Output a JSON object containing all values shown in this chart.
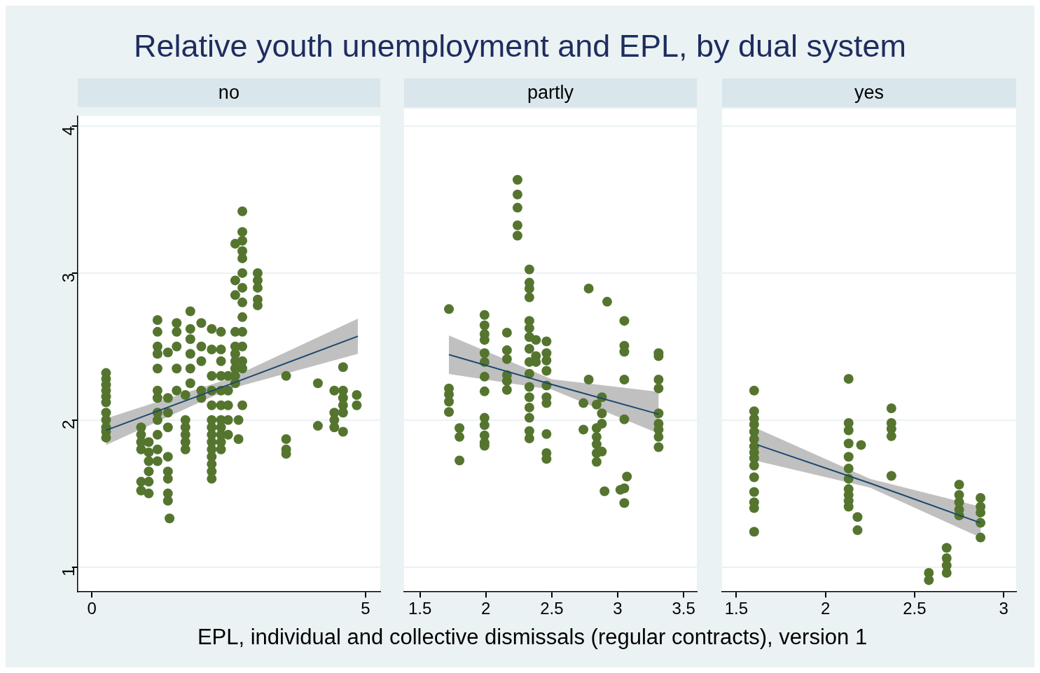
{
  "chart_data": [
    {
      "type": "scatter",
      "title": "Relative youth unemployment and EPL, by dual system",
      "subtitle": "no",
      "xlim": [
        -0.26,
        5.27
      ],
      "xticks": [
        0,
        5
      ],
      "ylim": [
        0.83,
        4.07
      ],
      "yticks": [
        1,
        2,
        3,
        4
      ],
      "grid": "y",
      "series": [
        {
          "type": "scatter",
          "marker": "circle",
          "color": "#55752f",
          "x": [
            0.26,
            0.26,
            0.26,
            0.26,
            0.26,
            0.26,
            0.26,
            0.26,
            0.26,
            0.26,
            0.26,
            0.9,
            0.9,
            0.9,
            0.9,
            0.9,
            0.9,
            1.2,
            1.2,
            1.2,
            1.2,
            1.2,
            1.2,
            1.2,
            1.2,
            1.2,
            1.2,
            1.2,
            1.2,
            1.04,
            1.04,
            1.04,
            1.04,
            1.04,
            1.04,
            1.39,
            1.39,
            1.39,
            1.39,
            1.39,
            1.39,
            1.39,
            1.39,
            1.39,
            1.42,
            1.55,
            1.55,
            1.55,
            1.55,
            1.55,
            1.71,
            1.71,
            1.71,
            1.71,
            1.71,
            1.71,
            1.8,
            1.8,
            1.8,
            1.8,
            1.8,
            1.8,
            2.0,
            2.0,
            2.0,
            2.0,
            2.0,
            2.19,
            2.19,
            2.19,
            2.19,
            2.19,
            2.19,
            2.19,
            2.19,
            2.19,
            2.19,
            2.19,
            2.19,
            2.19,
            2.19,
            2.36,
            2.36,
            2.36,
            2.36,
            2.36,
            2.36,
            2.36,
            2.36,
            2.36,
            2.36,
            2.36,
            2.49,
            2.49,
            2.49,
            2.49,
            2.49,
            2.62,
            2.62,
            2.62,
            2.62,
            2.62,
            2.62,
            2.62,
            2.62,
            2.62,
            2.62,
            2.75,
            2.75,
            2.75,
            2.75,
            2.75,
            2.75,
            2.75,
            2.75,
            2.75,
            2.75,
            2.75,
            2.75,
            2.75,
            2.75,
            2.68,
            2.68,
            3.03,
            3.03,
            3.03,
            3.03,
            3.03,
            3.55,
            3.55,
            3.55,
            3.55,
            4.13,
            4.13,
            4.43,
            4.43,
            4.43,
            4.43,
            4.59,
            4.59,
            4.59,
            4.59,
            4.59,
            4.59,
            4.84,
            4.84
          ],
          "values": [
            2.32,
            2.28,
            2.24,
            2.2,
            2.16,
            2.12,
            2.05,
            2.0,
            1.95,
            1.92,
            1.88,
            1.58,
            1.52,
            1.8,
            1.85,
            1.9,
            1.95,
            2.68,
            2.6,
            2.5,
            2.45,
            2.35,
            2.2,
            2.15,
            2.05,
            2.0,
            1.9,
            1.8,
            1.72,
            1.85,
            1.78,
            1.72,
            1.65,
            1.58,
            1.5,
            2.46,
            2.15,
            2.05,
            1.95,
            1.75,
            1.65,
            1.6,
            1.5,
            1.45,
            1.33,
            2.66,
            2.6,
            2.5,
            2.35,
            2.2,
            2.0,
            1.95,
            1.9,
            1.85,
            1.8,
            2.17,
            2.74,
            2.62,
            2.55,
            2.45,
            2.35,
            2.25,
            2.66,
            2.5,
            2.4,
            2.2,
            2.15,
            2.62,
            2.48,
            2.3,
            2.2,
            2.1,
            2.0,
            1.95,
            1.9,
            1.85,
            1.8,
            1.75,
            1.7,
            1.65,
            1.6,
            2.6,
            2.48,
            2.4,
            2.3,
            2.2,
            2.1,
            2.0,
            1.95,
            1.9,
            1.85,
            1.8,
            2.3,
            2.2,
            2.1,
            2.0,
            1.9,
            3.2,
            2.95,
            2.85,
            2.6,
            2.5,
            2.45,
            2.4,
            2.35,
            2.3,
            2.25,
            3.42,
            3.28,
            3.22,
            3.15,
            3.1,
            3.0,
            2.9,
            2.8,
            2.7,
            2.6,
            2.5,
            2.4,
            2.35,
            2.1,
            1.87,
            2.0,
            3.0,
            2.95,
            2.9,
            2.82,
            2.78,
            2.3,
            1.87,
            1.8,
            1.77,
            2.25,
            1.96,
            2.2,
            2.05,
            1.95,
            2.0,
            2.36,
            2.2,
            2.15,
            2.1,
            2.05,
            1.92,
            2.17,
            2.1
          ]
        },
        {
          "type": "line",
          "marker": "none",
          "color": "#1a476f",
          "x": [
            0.26,
            2.5,
            4.86
          ],
          "values": [
            1.93,
            2.24,
            2.57
          ],
          "lower": [
            1.83,
            2.21,
            2.45
          ],
          "upper": [
            2.01,
            2.28,
            2.69
          ]
        }
      ]
    },
    {
      "type": "scatter",
      "subtitle": "partly",
      "xlabel": "EPL, individual and collective dismissals (regular contracts), version 1",
      "xlim": [
        1.38,
        3.6
      ],
      "xticks": [
        1.5,
        2,
        2.5,
        3,
        3.5
      ],
      "ylim": [
        0.83,
        4.12
      ],
      "yticks": [
        1,
        2,
        3,
        4
      ],
      "tick_labels": "x",
      "grid": "y",
      "series": [
        {
          "type": "scatter",
          "marker": "circle",
          "color": "#55752f",
          "x": [
            1.72,
            1.72,
            1.72,
            1.72,
            1.72,
            1.8,
            1.8,
            1.8,
            1.99,
            1.99,
            1.99,
            1.99,
            1.99,
            1.99,
            1.99,
            1.99,
            1.99,
            1.99,
            1.99,
            1.99,
            1.99,
            2.16,
            2.16,
            2.16,
            2.16,
            2.16,
            2.16,
            2.24,
            2.24,
            2.24,
            2.24,
            2.24,
            2.33,
            2.33,
            2.33,
            2.33,
            2.33,
            2.33,
            2.33,
            2.33,
            2.33,
            2.33,
            2.33,
            2.33,
            2.33,
            2.33,
            2.33,
            2.33,
            2.38,
            2.38,
            2.38,
            2.46,
            2.46,
            2.46,
            2.46,
            2.46,
            2.46,
            2.46,
            2.46,
            2.46,
            2.46,
            2.78,
            2.78,
            2.74,
            2.74,
            2.84,
            2.84,
            2.84,
            2.84,
            2.84,
            2.84,
            2.88,
            2.88,
            2.88,
            2.88,
            2.92,
            2.9,
            3.05,
            3.05,
            3.05,
            3.05,
            3.05,
            3.05,
            3.05,
            3.07,
            3.02,
            3.31,
            3.31,
            3.31,
            3.31,
            3.31,
            3.31,
            3.31,
            3.31,
            3.31
          ],
          "values": [
            2.755,
            2.215,
            2.175,
            2.125,
            2.055,
            1.945,
            1.885,
            1.725,
            2.715,
            2.645,
            2.585,
            2.545,
            2.455,
            2.395,
            2.295,
            2.195,
            2.015,
            1.965,
            1.895,
            1.845,
            1.825,
            2.595,
            2.475,
            2.415,
            2.305,
            2.265,
            2.205,
            3.635,
            3.535,
            3.445,
            3.325,
            3.255,
            3.025,
            2.935,
            2.895,
            2.835,
            2.675,
            2.625,
            2.565,
            2.485,
            2.395,
            2.315,
            2.225,
            2.155,
            2.085,
            2.015,
            1.925,
            1.875,
            2.545,
            2.435,
            2.395,
            2.535,
            2.455,
            2.405,
            2.335,
            2.235,
            2.155,
            2.115,
            1.905,
            1.775,
            1.735,
            2.895,
            2.275,
            2.115,
            1.935,
            2.105,
            1.945,
            1.885,
            1.835,
            1.775,
            1.715,
            2.155,
            2.045,
            1.975,
            1.785,
            2.805,
            1.515,
            2.675,
            2.505,
            2.465,
            2.275,
            2.005,
            1.535,
            1.435,
            1.615,
            1.525,
            2.455,
            2.435,
            2.275,
            2.215,
            2.045,
            1.975,
            1.935,
            1.885,
            1.815
          ]
        },
        {
          "type": "line",
          "marker": "none",
          "color": "#1a476f",
          "x": [
            1.72,
            2.5,
            3.31
          ],
          "values": [
            2.445,
            2.242,
            2.04
          ],
          "lower": [
            2.313,
            2.207,
            1.908
          ],
          "upper": [
            2.576,
            2.278,
            2.192
          ]
        }
      ]
    },
    {
      "type": "scatter",
      "subtitle": "yes",
      "xlim": [
        1.42,
        3.07
      ],
      "xticks": [
        1.5,
        2,
        2.5,
        3
      ],
      "ylim": [
        0.83,
        4.12
      ],
      "yticks": [
        1,
        2,
        3,
        4
      ],
      "tick_labels": "x",
      "grid": "y",
      "series": [
        {
          "type": "scatter",
          "marker": "circle",
          "color": "#55752f",
          "x": [
            1.6,
            1.6,
            1.6,
            1.6,
            1.6,
            1.6,
            1.6,
            1.6,
            1.6,
            1.6,
            1.6,
            1.6,
            1.6,
            1.6,
            1.6,
            2.13,
            2.13,
            2.13,
            2.13,
            2.13,
            2.13,
            2.13,
            2.13,
            2.13,
            2.13,
            2.13,
            2.2,
            2.18,
            2.18,
            2.37,
            2.37,
            2.37,
            2.37,
            2.37,
            2.58,
            2.58,
            2.68,
            2.68,
            2.68,
            2.68,
            2.75,
            2.75,
            2.75,
            2.75,
            2.75,
            2.87,
            2.87,
            2.87,
            2.87,
            2.87
          ],
          "values": [
            2.2,
            2.06,
            2.01,
            1.97,
            1.92,
            1.87,
            1.82,
            1.78,
            1.74,
            1.69,
            1.61,
            1.51,
            1.44,
            1.4,
            1.24,
            2.28,
            1.98,
            1.93,
            1.84,
            1.75,
            1.67,
            1.6,
            1.53,
            1.49,
            1.45,
            1.41,
            1.83,
            1.34,
            1.25,
            2.08,
            1.98,
            1.94,
            1.89,
            1.62,
            0.96,
            0.91,
            1.13,
            1.06,
            1.01,
            0.96,
            1.56,
            1.49,
            1.44,
            1.39,
            1.35,
            1.47,
            1.41,
            1.37,
            1.3,
            1.2
          ]
        },
        {
          "type": "line",
          "marker": "none",
          "color": "#1a476f",
          "x": [
            1.62,
            2.25,
            2.87
          ],
          "values": [
            1.83,
            1.57,
            1.3
          ],
          "lower": [
            1.72,
            1.54,
            1.2
          ],
          "upper": [
            1.94,
            1.6,
            1.41
          ]
        }
      ]
    }
  ]
}
